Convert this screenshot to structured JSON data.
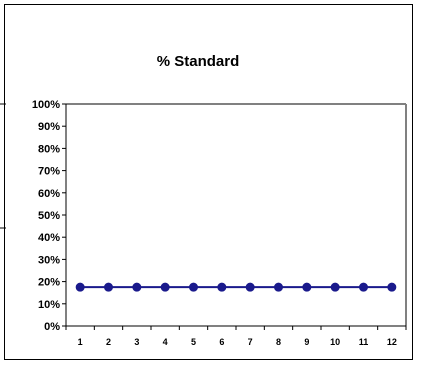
{
  "chart_data": {
    "type": "line",
    "title": "% Standard",
    "xlabel": "",
    "ylabel": "",
    "categories": [
      "1",
      "2",
      "3",
      "4",
      "5",
      "6",
      "7",
      "8",
      "9",
      "10",
      "11",
      "12"
    ],
    "series": [
      {
        "values": [
          17.5,
          17.5,
          17.5,
          17.5,
          17.5,
          17.5,
          17.5,
          17.5,
          17.5,
          17.5,
          17.5,
          17.5
        ]
      }
    ],
    "ylim": [
      0,
      100
    ],
    "y_ticks": [
      "0%",
      "10%",
      "20%",
      "30%",
      "40%",
      "50%",
      "60%",
      "70%",
      "80%",
      "90%",
      "100%"
    ],
    "grid": false,
    "legend": "none",
    "colors": {
      "line": "#1a1a8c",
      "marker": "#1a1a8c",
      "plot_border": "#808080",
      "frame": "#000000"
    }
  }
}
